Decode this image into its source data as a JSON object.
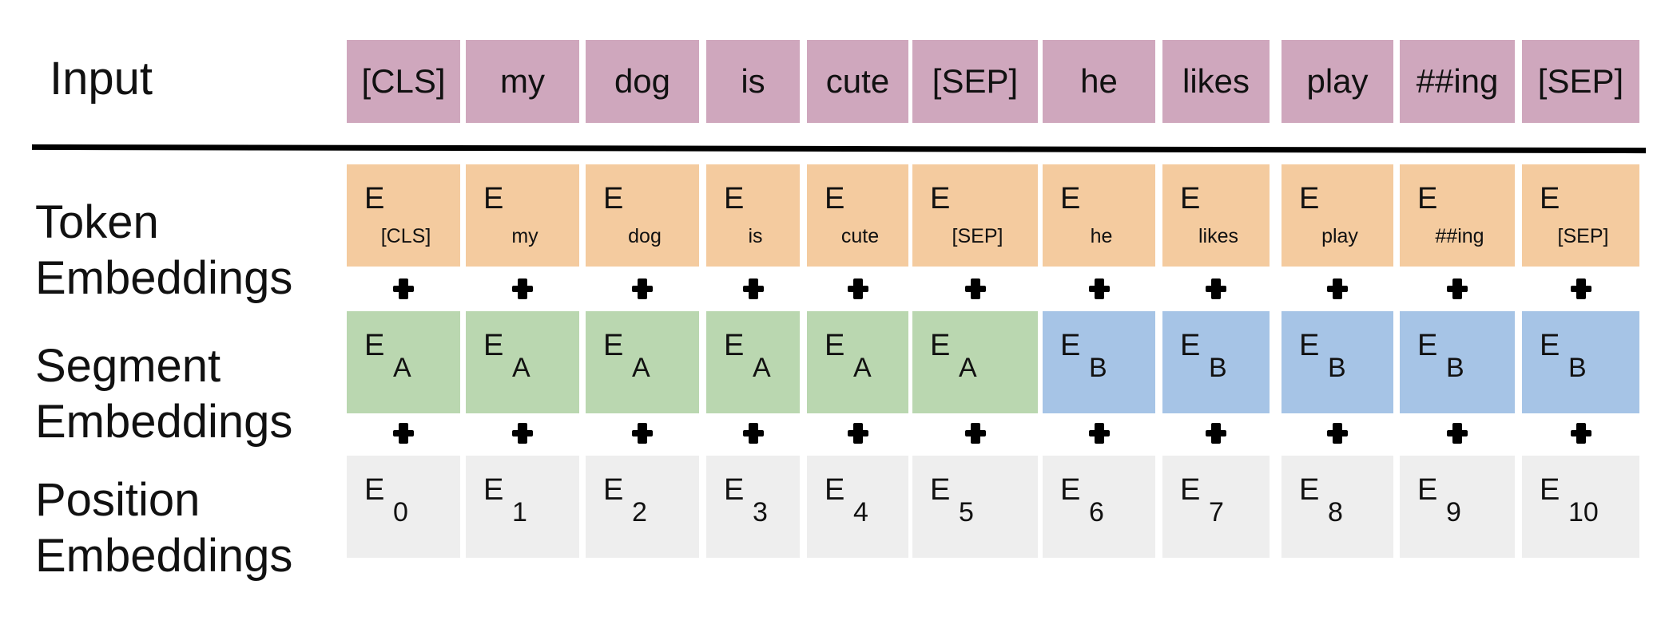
{
  "labels": {
    "input": "Input",
    "token": [
      "Token",
      "Embeddings"
    ],
    "segment": [
      "Segment",
      "Embeddings"
    ],
    "position": [
      "Position",
      "Embeddings"
    ]
  },
  "embedding_symbol": "E",
  "tokens": [
    "[CLS]",
    "my",
    "dog",
    "is",
    "cute",
    "[SEP]",
    "he",
    "likes",
    "play",
    "##ing",
    "[SEP]"
  ],
  "segments": [
    "A",
    "A",
    "A",
    "A",
    "A",
    "A",
    "B",
    "B",
    "B",
    "B",
    "B"
  ],
  "positions": [
    "0",
    "1",
    "2",
    "3",
    "4",
    "5",
    "6",
    "7",
    "8",
    "9",
    "10"
  ],
  "colors": {
    "input": "#cfa7bd",
    "token": "#f4cb9f",
    "segment_a": "#bad7b0",
    "segment_b": "#a6c4e6",
    "position": "#eeeeee"
  },
  "icons": {
    "operator": "plus-icon"
  }
}
